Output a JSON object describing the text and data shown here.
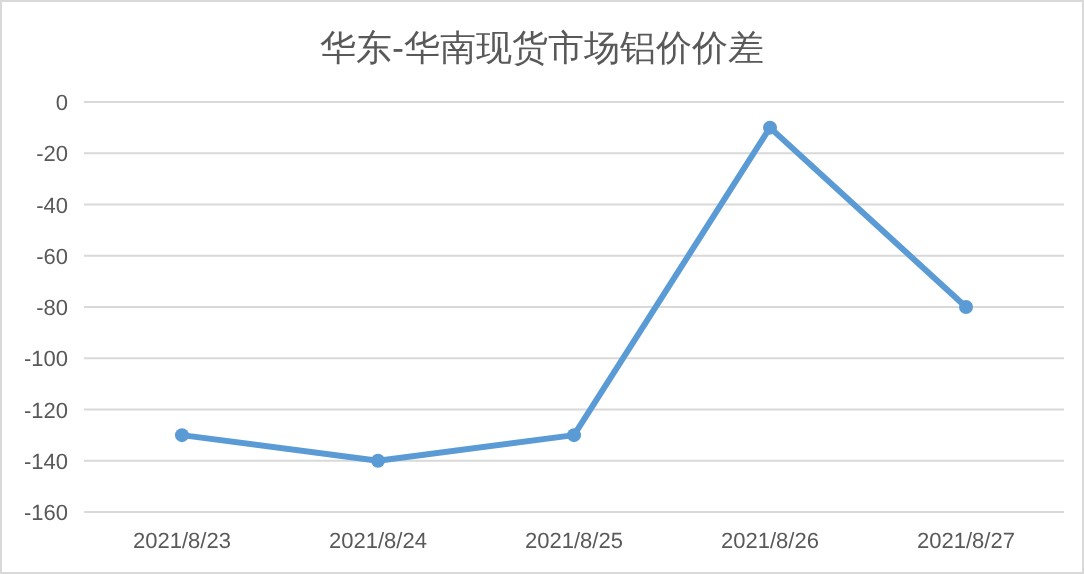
{
  "chart_data": {
    "type": "line",
    "title": "华东-华南现货市场铝价价差",
    "categories": [
      "2021/8/23",
      "2021/8/24",
      "2021/8/25",
      "2021/8/26",
      "2021/8/27"
    ],
    "series": [
      {
        "color": "#5b9bd5",
        "values": [
          -130,
          -140,
          -130,
          -10,
          -80
        ]
      }
    ],
    "ylim": [
      -160,
      0
    ],
    "yticks": [
      0,
      -20,
      -40,
      -60,
      -80,
      -100,
      -120,
      -140,
      -160
    ],
    "grid": "y",
    "marker": "circle",
    "line_style": "solid"
  }
}
